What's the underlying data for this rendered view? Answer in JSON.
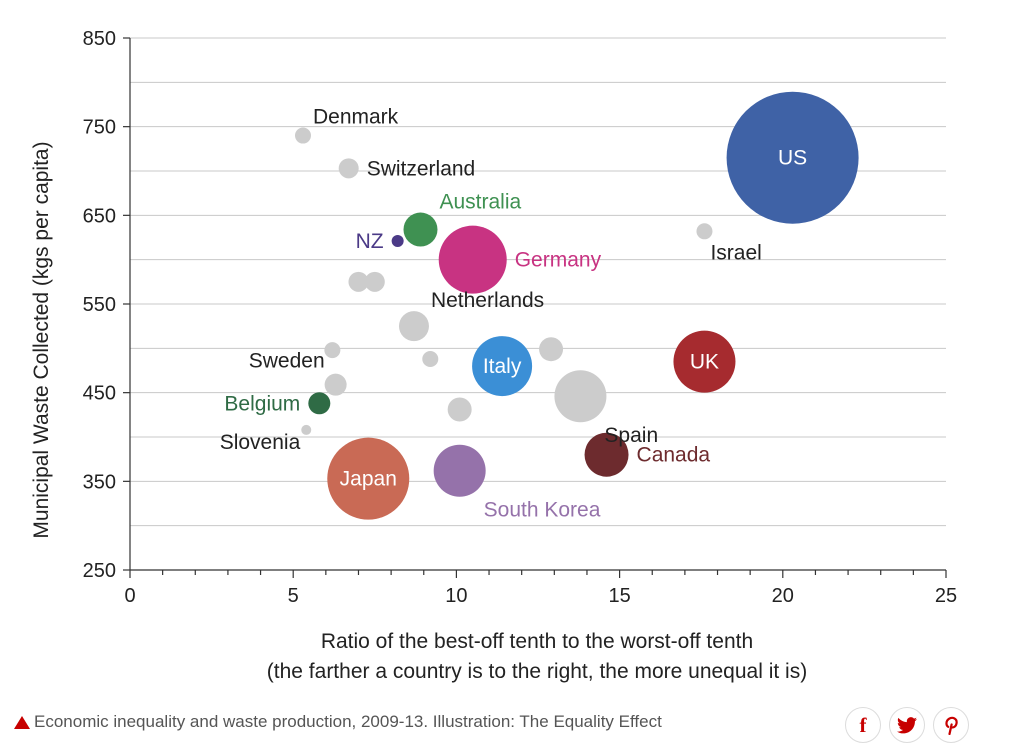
{
  "chart_data": {
    "type": "scatter",
    "xlabel_line1": "Ratio of the best-off tenth to the worst-off tenth",
    "xlabel_line2": "(the farther a country is to the right, the more unequal it is)",
    "ylabel": "Municipal Waste Collected (kgs per capita)",
    "xlim": [
      0,
      25
    ],
    "ylim": [
      250,
      850
    ],
    "xticks": [
      "0",
      "5",
      "10",
      "15",
      "20",
      "25"
    ],
    "yticks": [
      "250",
      "350",
      "450",
      "550",
      "650",
      "750",
      "850"
    ],
    "grid": "horizontal",
    "points": [
      {
        "label": "US",
        "x": 20.3,
        "y": 715,
        "size": 66,
        "color": "#3f62a6",
        "label_color": "#ffffff",
        "label_pos": "inside"
      },
      {
        "label": "Israel",
        "x": 17.6,
        "y": 632,
        "size": 8,
        "color": "#cccccc",
        "label_color": "#222222",
        "label_pos": "below-right"
      },
      {
        "label": "Denmark",
        "x": 5.3,
        "y": 740,
        "size": 8,
        "color": "#cccccc",
        "label_color": "#222222",
        "label_pos": "above-right"
      },
      {
        "label": "Switzerland",
        "x": 6.7,
        "y": 703,
        "size": 10,
        "color": "#cccccc",
        "label_color": "#222222",
        "label_pos": "right"
      },
      {
        "label": "Australia",
        "x": 8.9,
        "y": 634,
        "size": 17,
        "color": "#3f9152",
        "label_color": "#3f9152",
        "label_pos": "above-right"
      },
      {
        "label": "NZ",
        "x": 8.2,
        "y": 621,
        "size": 6,
        "color": "#4b3a87",
        "label_color": "#4b3a87",
        "label_pos": "left"
      },
      {
        "label": "Germany",
        "x": 10.5,
        "y": 600,
        "size": 34,
        "color": "#c83382",
        "label_color": "#c83382",
        "label_pos": "right"
      },
      {
        "label": "",
        "x": 7.0,
        "y": 575,
        "size": 10,
        "color": "#cccccc",
        "label_color": "#222222",
        "label_pos": "none"
      },
      {
        "label": "",
        "x": 7.5,
        "y": 575,
        "size": 10,
        "color": "#cccccc",
        "label_color": "#222222",
        "label_pos": "none"
      },
      {
        "label": "Netherlands",
        "x": 8.7,
        "y": 525,
        "size": 15,
        "color": "#cccccc",
        "label_color": "#222222",
        "label_pos": "above-right"
      },
      {
        "label": "",
        "x": 6.2,
        "y": 498,
        "size": 8,
        "color": "#cccccc",
        "label_color": "#222222",
        "label_pos": "none"
      },
      {
        "label": "",
        "x": 9.2,
        "y": 488,
        "size": 8,
        "color": "#cccccc",
        "label_color": "#222222",
        "label_pos": "none"
      },
      {
        "label": "Italy",
        "x": 11.4,
        "y": 480,
        "size": 30,
        "color": "#3b8fd6",
        "label_color": "#ffffff",
        "label_pos": "inside"
      },
      {
        "label": "",
        "x": 12.9,
        "y": 499,
        "size": 12,
        "color": "#cccccc",
        "label_color": "#222222",
        "label_pos": "none"
      },
      {
        "label": "UK",
        "x": 17.6,
        "y": 485,
        "size": 31,
        "color": "#a62b2f",
        "label_color": "#ffffff",
        "label_pos": "inside"
      },
      {
        "label": "Sweden",
        "x": 6.3,
        "y": 459,
        "size": 11,
        "color": "#cccccc",
        "label_color": "#222222",
        "label_pos": "above-left"
      },
      {
        "label": "Spain",
        "x": 13.8,
        "y": 446,
        "size": 26,
        "color": "#cccccc",
        "label_color": "#222222",
        "label_pos": "below-right"
      },
      {
        "label": "Belgium",
        "x": 5.8,
        "y": 438,
        "size": 11,
        "color": "#2f6b45",
        "label_color": "#2f6b45",
        "label_pos": "left"
      },
      {
        "label": "",
        "x": 10.1,
        "y": 431,
        "size": 12,
        "color": "#cccccc",
        "label_color": "#222222",
        "label_pos": "none"
      },
      {
        "label": "Slovenia",
        "x": 5.4,
        "y": 408,
        "size": 5,
        "color": "#cccccc",
        "label_color": "#222222",
        "label_pos": "below-left"
      },
      {
        "label": "Canada",
        "x": 14.6,
        "y": 380,
        "size": 22,
        "color": "#6d2b2e",
        "label_color": "#6d2b2e",
        "label_pos": "right"
      },
      {
        "label": "Japan",
        "x": 7.3,
        "y": 353,
        "size": 41,
        "color": "#c96a55",
        "label_color": "#ffffff",
        "label_pos": "inside"
      },
      {
        "label": "South Korea",
        "x": 10.1,
        "y": 362,
        "size": 26,
        "color": "#9572aa",
        "label_color": "#9572aa",
        "label_pos": "below-right"
      }
    ]
  },
  "caption": {
    "text": "Economic inequality and waste production, 2009-13. Illustration: The Equality Effect",
    "marker_color": "#c70000"
  },
  "share": {
    "facebook": {
      "icon": "facebook-icon",
      "glyph": "f",
      "color": "#c70000"
    },
    "twitter": {
      "icon": "twitter-icon",
      "color": "#c70000"
    },
    "pinterest": {
      "icon": "pinterest-icon",
      "color": "#c70000"
    }
  }
}
